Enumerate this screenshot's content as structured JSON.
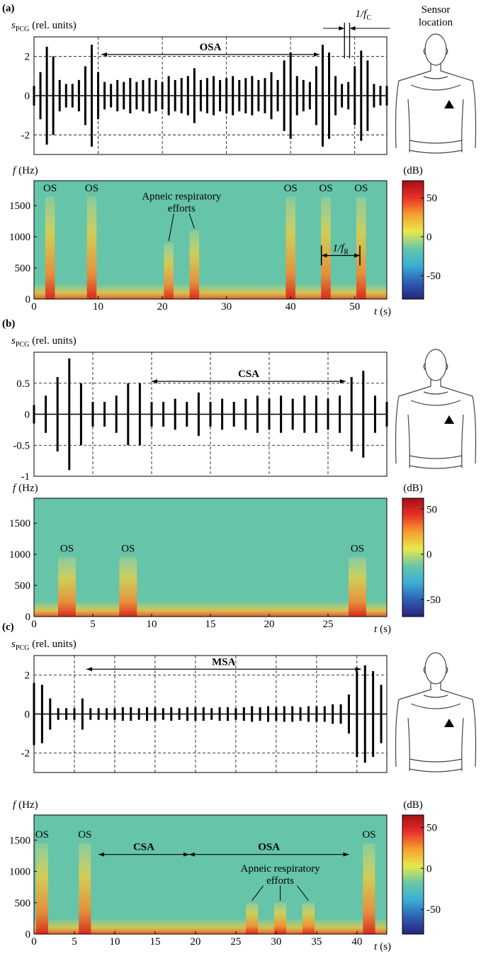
{
  "panel_labels": [
    "(a)",
    "(b)",
    "(c)"
  ],
  "sensor_label": [
    "Sensor",
    "location"
  ],
  "chart_data": [
    {
      "type": "waveform",
      "ylabel": {
        "symbol": "s",
        "sub": "PCG",
        "unit": "(rel. units)"
      },
      "xlim": [
        0,
        55
      ],
      "ylim": [
        -3,
        3
      ],
      "xticks": [
        0,
        10,
        20,
        30,
        40,
        50
      ],
      "yticks": [
        -2,
        0,
        2
      ],
      "grid": true,
      "color": "#000000",
      "x": [
        0,
        1,
        2,
        3,
        4,
        5,
        6,
        7,
        8,
        9,
        10,
        11,
        12,
        13,
        14,
        15,
        16,
        17,
        18,
        19,
        20,
        21,
        22,
        23,
        24,
        25,
        26,
        27,
        28,
        29,
        30,
        31,
        32,
        33,
        34,
        35,
        36,
        37,
        38,
        39,
        40,
        41,
        42,
        43,
        44,
        45,
        46,
        47,
        48,
        49,
        50,
        51,
        52,
        53,
        54,
        55
      ],
      "values": [
        0.5,
        1.2,
        2.5,
        2.0,
        0.8,
        0.6,
        0.6,
        0.8,
        1.5,
        2.6,
        1.2,
        0.7,
        0.6,
        0.8,
        0.7,
        0.9,
        0.7,
        0.8,
        0.9,
        0.8,
        0.7,
        1.0,
        0.8,
        0.9,
        1.0,
        1.4,
        0.8,
        0.9,
        1.0,
        0.8,
        0.9,
        1.0,
        0.8,
        0.9,
        1.0,
        0.8,
        0.9,
        1.2,
        0.8,
        1.8,
        2.2,
        1.0,
        0.8,
        0.7,
        1.5,
        2.6,
        2.2,
        1.0,
        0.6,
        0.7,
        1.5,
        2.3,
        1.8,
        0.6,
        0.5,
        0.5
      ],
      "spans": [
        {
          "label": "OSA",
          "x": [
            10.5,
            44.5
          ],
          "y": 2.1
        }
      ],
      "period_marker": {
        "label": "1/f",
        "sub": "C",
        "x": [
          48.4,
          49.2
        ],
        "y": 1.9
      }
    },
    {
      "type": "spectrogram",
      "xlabel": {
        "symbol": "t",
        "unit": "(s)"
      },
      "ylabel": {
        "symbol": "f",
        "unit": "(Hz)"
      },
      "xlim": [
        0,
        55
      ],
      "ylim": [
        0,
        1900
      ],
      "xticks": [
        0,
        10,
        20,
        30,
        40,
        50
      ],
      "yticks": [
        0,
        500,
        1000,
        1500
      ],
      "events": {
        "x": [
          2.5,
          9,
          21,
          25,
          40,
          45.5,
          51
        ],
        "fmax": [
          1640,
          1640,
          900,
          1100,
          1640,
          1640,
          1640
        ],
        "labels": [
          "OS",
          "OS",
          null,
          null,
          "OS",
          "OS",
          "OS"
        ]
      },
      "annotation": [
        "Apneic respiratory",
        "efforts"
      ],
      "spans": [
        {
          "label": "1/f",
          "sub": "R",
          "x": [
            44.8,
            50.8
          ],
          "y": 700
        }
      ],
      "colorbar": {
        "label": "(dB)",
        "lim": [
          -80,
          72
        ],
        "ticks": [
          50,
          0,
          -50
        ],
        "colormap": [
          "#a50f15",
          "#e8302a",
          "#f5a030",
          "#e8e84a",
          "#68c7a8",
          "#3aaed6",
          "#2e5fb4",
          "#28237a"
        ]
      }
    },
    {
      "type": "waveform",
      "ylabel": {
        "symbol": "s",
        "sub": "PCG",
        "unit": "(rel. units)"
      },
      "xlim": [
        0,
        30
      ],
      "ylim": [
        -1,
        1
      ],
      "xticks": [
        0,
        5,
        10,
        15,
        20,
        25
      ],
      "yticks": [
        -1,
        -0.5,
        0,
        0.5
      ],
      "grid": true,
      "color": "#000000",
      "x": [
        0,
        1,
        2,
        3,
        4,
        5,
        6,
        7,
        8,
        9,
        10,
        11,
        12,
        13,
        14,
        15,
        16,
        17,
        18,
        19,
        20,
        21,
        22,
        23,
        24,
        25,
        26,
        27,
        28,
        29,
        30
      ],
      "values": [
        0.15,
        0.3,
        0.6,
        0.9,
        0.5,
        0.2,
        0.2,
        0.3,
        0.5,
        0.5,
        0.2,
        0.2,
        0.25,
        0.2,
        0.35,
        0.2,
        0.25,
        0.2,
        0.25,
        0.3,
        0.25,
        0.3,
        0.25,
        0.3,
        0.3,
        0.25,
        0.3,
        0.6,
        0.7,
        0.3,
        0.2
      ],
      "spans": [
        {
          "label": "CSA",
          "x": [
            10,
            26.5
          ],
          "y": 0.53
        }
      ]
    },
    {
      "type": "spectrogram",
      "xlabel": {
        "symbol": "t",
        "unit": "(s)"
      },
      "ylabel": {
        "symbol": "f",
        "unit": "(Hz)"
      },
      "xlim": [
        0,
        30
      ],
      "ylim": [
        0,
        1900
      ],
      "xticks": [
        0,
        5,
        10,
        15,
        20,
        25
      ],
      "yticks": [
        0,
        500,
        1000,
        1500
      ],
      "events": {
        "x": [
          2.8,
          8,
          27.5
        ],
        "fmax": [
          950,
          950,
          950
        ],
        "labels": [
          "OS",
          "OS",
          "OS"
        ]
      },
      "colorbar": {
        "label": "(dB)",
        "lim": [
          -69,
          62
        ],
        "ticks": [
          50,
          0,
          -50
        ],
        "colormap": [
          "#a50f15",
          "#e8302a",
          "#f5a030",
          "#e8e84a",
          "#68c7a8",
          "#3aaed6",
          "#2e5fb4",
          "#28237a"
        ]
      }
    },
    {
      "type": "waveform",
      "ylabel": {
        "symbol": "s",
        "sub": "PCG",
        "unit": "(rel. units)"
      },
      "xlim": [
        0,
        43.7
      ],
      "ylim": [
        -3,
        3
      ],
      "xticks": [
        0,
        5,
        10,
        15,
        20,
        25,
        30,
        35,
        40
      ],
      "yticks": [
        -2,
        0,
        2
      ],
      "grid": true,
      "color": "#000000",
      "x": [
        0,
        1,
        2,
        3,
        4,
        5,
        6,
        7,
        8,
        9,
        10,
        11,
        12,
        13,
        14,
        15,
        16,
        17,
        18,
        19,
        20,
        21,
        22,
        23,
        24,
        25,
        26,
        27,
        28,
        29,
        30,
        31,
        32,
        33,
        34,
        35,
        36,
        37,
        38,
        39,
        40,
        41,
        42,
        43
      ],
      "values": [
        1.6,
        1.5,
        0.8,
        0.3,
        0.3,
        0.3,
        0.8,
        0.3,
        0.3,
        0.3,
        0.3,
        0.35,
        0.35,
        0.3,
        0.35,
        0.35,
        0.3,
        0.35,
        0.3,
        0.35,
        0.35,
        0.35,
        0.3,
        0.35,
        0.35,
        0.3,
        0.35,
        0.4,
        0.35,
        0.4,
        0.35,
        0.4,
        0.4,
        0.35,
        0.4,
        0.4,
        0.4,
        0.5,
        0.5,
        1.0,
        2.2,
        2.5,
        2.2,
        1.5
      ],
      "spans": [
        {
          "label": "MSA",
          "x": [
            6.5,
            40.5
          ],
          "y": 2.3
        }
      ]
    },
    {
      "type": "spectrogram",
      "xlabel": {
        "symbol": "t",
        "unit": "(s)"
      },
      "ylabel": {
        "symbol": "f",
        "unit": "(Hz)"
      },
      "xlim": [
        0,
        43.7
      ],
      "ylim": [
        0,
        1900
      ],
      "xticks": [
        0,
        5,
        10,
        15,
        20,
        25,
        30,
        35,
        40
      ],
      "yticks": [
        0,
        500,
        1000,
        1500
      ],
      "events": {
        "x": [
          1,
          6.3,
          27,
          30.5,
          34,
          41.5
        ],
        "fmax": [
          1450,
          1450,
          500,
          500,
          500,
          1450
        ],
        "labels": [
          "OS",
          "OS",
          null,
          null,
          null,
          "OS"
        ]
      },
      "annotation": [
        "Apneic respiratory",
        "efforts"
      ],
      "spans": [
        {
          "label": "CSA",
          "x": [
            8,
            19.2
          ],
          "y": 1270
        },
        {
          "label": "OSA",
          "x": [
            19.2,
            39
          ],
          "y": 1270
        }
      ],
      "colorbar": {
        "label": "(dB)",
        "lim": [
          -80,
          65
        ],
        "ticks": [
          50,
          0,
          -50
        ],
        "colormap": [
          "#a50f15",
          "#e8302a",
          "#f5a030",
          "#e8e84a",
          "#68c7a8",
          "#3aaed6",
          "#2e5fb4",
          "#28237a"
        ]
      }
    }
  ]
}
